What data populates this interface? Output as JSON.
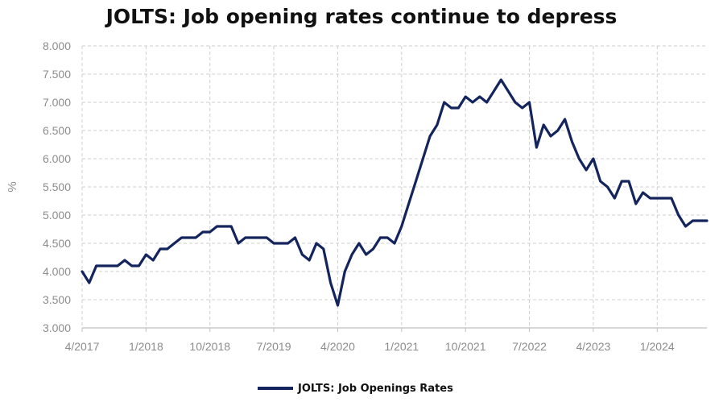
{
  "chart_data": {
    "type": "line",
    "title": "JOLTS: Job opening rates continue to depress",
    "ylabel": "%",
    "xlabel": "",
    "ylim": [
      3.0,
      8.0
    ],
    "y_ticks": [
      "3.000",
      "3.500",
      "4.000",
      "4.500",
      "5.000",
      "5.500",
      "6.000",
      "6.500",
      "7.000",
      "7.500",
      "8.000"
    ],
    "x_ticks": [
      "4/2017",
      "1/2018",
      "10/2018",
      "7/2019",
      "4/2020",
      "1/2021",
      "10/2021",
      "7/2022",
      "4/2023",
      "1/2024"
    ],
    "x_range": [
      "2017-04",
      "2024-08"
    ],
    "grid": true,
    "legend_position": "bottom",
    "series": [
      {
        "name": "JOLTS: Job Openings Rates",
        "color": "#14245c",
        "x": [
          "2017-04",
          "2017-05",
          "2017-06",
          "2017-07",
          "2017-08",
          "2017-09",
          "2017-10",
          "2017-11",
          "2017-12",
          "2018-01",
          "2018-02",
          "2018-03",
          "2018-04",
          "2018-05",
          "2018-06",
          "2018-07",
          "2018-08",
          "2018-09",
          "2018-10",
          "2018-11",
          "2018-12",
          "2019-01",
          "2019-02",
          "2019-03",
          "2019-04",
          "2019-05",
          "2019-06",
          "2019-07",
          "2019-08",
          "2019-09",
          "2019-10",
          "2019-11",
          "2019-12",
          "2020-01",
          "2020-02",
          "2020-03",
          "2020-04",
          "2020-05",
          "2020-06",
          "2020-07",
          "2020-08",
          "2020-09",
          "2020-10",
          "2020-11",
          "2020-12",
          "2021-01",
          "2021-02",
          "2021-03",
          "2021-04",
          "2021-05",
          "2021-06",
          "2021-07",
          "2021-08",
          "2021-09",
          "2021-10",
          "2021-11",
          "2021-12",
          "2022-01",
          "2022-02",
          "2022-03",
          "2022-04",
          "2022-05",
          "2022-06",
          "2022-07",
          "2022-08",
          "2022-09",
          "2022-10",
          "2022-11",
          "2022-12",
          "2023-01",
          "2023-02",
          "2023-03",
          "2023-04",
          "2023-05",
          "2023-06",
          "2023-07",
          "2023-08",
          "2023-09",
          "2023-10",
          "2023-11",
          "2023-12",
          "2024-01",
          "2024-02",
          "2024-03",
          "2024-04",
          "2024-05",
          "2024-06",
          "2024-07",
          "2024-08"
        ],
        "values": [
          4.0,
          3.8,
          4.1,
          4.1,
          4.1,
          4.1,
          4.2,
          4.1,
          4.1,
          4.3,
          4.2,
          4.4,
          4.4,
          4.5,
          4.6,
          4.6,
          4.6,
          4.7,
          4.7,
          4.8,
          4.8,
          4.8,
          4.5,
          4.6,
          4.6,
          4.6,
          4.6,
          4.5,
          4.5,
          4.5,
          4.6,
          4.3,
          4.2,
          4.5,
          4.4,
          3.8,
          3.4,
          4.0,
          4.3,
          4.5,
          4.3,
          4.4,
          4.6,
          4.6,
          4.5,
          4.8,
          5.2,
          5.6,
          6.0,
          6.4,
          6.6,
          7.0,
          6.9,
          6.9,
          7.1,
          7.0,
          7.1,
          7.0,
          7.2,
          7.4,
          7.2,
          7.0,
          6.9,
          7.0,
          6.2,
          6.6,
          6.4,
          6.5,
          6.7,
          6.3,
          6.0,
          5.8,
          6.0,
          5.6,
          5.5,
          5.3,
          5.6,
          5.6,
          5.2,
          5.4,
          5.3,
          5.3,
          5.3,
          5.3,
          5.0,
          4.8,
          4.9,
          4.9,
          4.9
        ]
      }
    ]
  }
}
